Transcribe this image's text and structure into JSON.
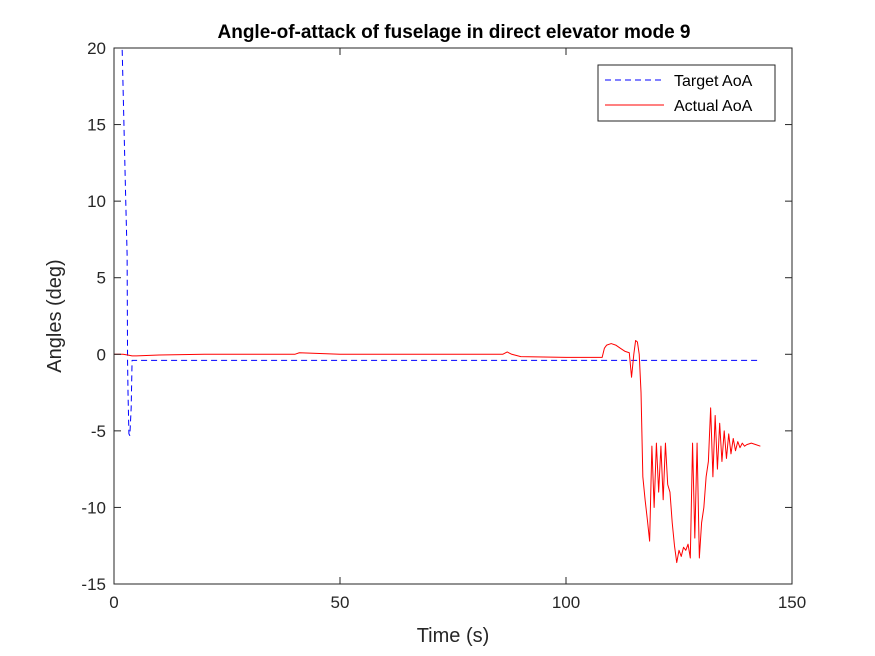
{
  "chart_data": {
    "type": "line",
    "title": "Angle-of-attack of fuselage in direct elevator mode 9",
    "xlabel": "Time (s)",
    "ylabel": "Angles (deg)",
    "xlim": [
      0,
      150
    ],
    "ylim": [
      -15,
      20
    ],
    "xticks": [
      0,
      50,
      100,
      150
    ],
    "yticks": [
      -15,
      -10,
      -5,
      0,
      5,
      10,
      15,
      20
    ],
    "xtick_labels": [
      "0",
      "50",
      "100",
      "150"
    ],
    "ytick_labels": [
      "-15",
      "-10",
      "-5",
      "0",
      "5",
      "10",
      "15",
      "20"
    ],
    "grid": false,
    "legend_position": "top-right",
    "series": [
      {
        "name": "Target AoA",
        "color": "#0000ff",
        "style": "dashed",
        "x": [
          0,
          1.8,
          2.2,
          2.6,
          2.9,
          3.0,
          3.1,
          3.3,
          3.5,
          3.8,
          4.0,
          4.1,
          4.3,
          5.0,
          20,
          50,
          100,
          143
        ],
        "y": [
          20,
          20,
          15,
          10,
          6.5,
          -0.4,
          -2.5,
          -5.2,
          -5.3,
          -3.5,
          -0.4,
          -0.4,
          -0.4,
          -0.4,
          -0.4,
          -0.4,
          -0.4,
          -0.4
        ]
      },
      {
        "name": "Actual AoA",
        "color": "#ff0000",
        "style": "solid",
        "x": [
          0,
          2,
          3,
          4,
          5,
          10,
          20,
          30,
          40,
          41,
          50,
          60,
          70,
          80,
          86,
          87,
          88,
          90,
          100,
          105,
          108,
          108.5,
          109,
          110,
          111,
          112,
          113,
          114,
          114.5,
          115,
          115.4,
          115.8,
          116.2,
          116.6,
          117,
          117.5,
          118,
          118.5,
          119,
          119.5,
          120,
          120.5,
          121,
          121.5,
          122,
          122.5,
          123,
          123.5,
          124,
          124.5,
          125,
          125.5,
          126,
          126.5,
          127,
          127.5,
          128,
          128.5,
          129,
          129.5,
          130,
          130.5,
          131,
          131.5,
          132,
          132.5,
          133,
          133.5,
          134,
          134.5,
          135,
          135.5,
          136,
          136.5,
          137,
          137.5,
          138,
          138.5,
          139,
          139.5,
          140,
          141,
          142,
          143
        ],
        "y": [
          0,
          0,
          -0.05,
          -0.1,
          -0.1,
          -0.05,
          0,
          0,
          0,
          0.1,
          0,
          0,
          0,
          0,
          0,
          0.15,
          0,
          -0.15,
          -0.2,
          -0.2,
          -0.2,
          0.4,
          0.6,
          0.7,
          0.6,
          0.4,
          0.2,
          0.1,
          -1.5,
          0,
          0.9,
          0.8,
          0,
          -2.5,
          -8,
          -9.5,
          -10.8,
          -12.2,
          -6,
          -10,
          -5.8,
          -9,
          -6,
          -9.5,
          -5.8,
          -8.5,
          -9,
          -11,
          -12.5,
          -13.6,
          -12.8,
          -13.2,
          -12.6,
          -12.8,
          -12.4,
          -13.3,
          -5.8,
          -12,
          -5.8,
          -13.3,
          -11,
          -10,
          -8,
          -7,
          -3.5,
          -8,
          -4,
          -7.5,
          -4.5,
          -7,
          -5,
          -6.8,
          -5.2,
          -6.5,
          -5.5,
          -6.3,
          -5.7,
          -6.1,
          -5.8,
          -6.0,
          -5.9,
          -5.8,
          -5.9,
          -6.0
        ]
      }
    ]
  }
}
